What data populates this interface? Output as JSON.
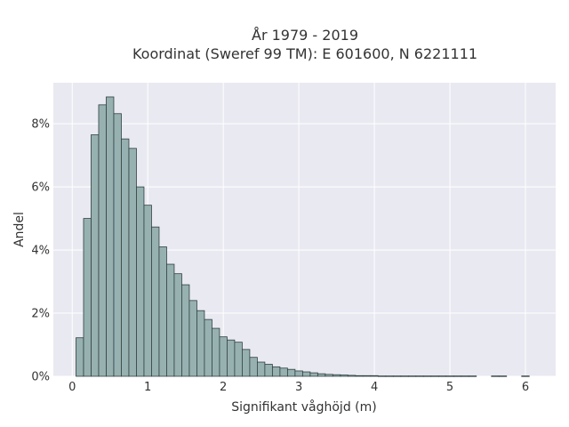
{
  "chart_data": {
    "type": "bar",
    "title_line1": "År 1979 - 2019",
    "title_line2": "Koordinat (Sweref 99 TM): E 601600, N 6221111",
    "xlabel": "Signifikant våghöjd (m)",
    "ylabel": "Andel",
    "bin_width": 0.1,
    "xlim": [
      -0.25,
      6.4
    ],
    "ylim": [
      0,
      9.3
    ],
    "x_ticks": [
      0,
      1,
      2,
      3,
      4,
      5,
      6
    ],
    "x_tick_labels": [
      "0",
      "1",
      "2",
      "3",
      "4",
      "5",
      "6"
    ],
    "y_ticks": [
      0,
      2,
      4,
      6,
      8
    ],
    "y_tick_labels": [
      "0%",
      "2%",
      "4%",
      "6%",
      "8%"
    ],
    "grid": true,
    "bin_starts": [
      0.05,
      0.15,
      0.25,
      0.35,
      0.45,
      0.55,
      0.65,
      0.75,
      0.85,
      0.95,
      1.05,
      1.15,
      1.25,
      1.35,
      1.45,
      1.55,
      1.65,
      1.75,
      1.85,
      1.95,
      2.05,
      2.15,
      2.25,
      2.35,
      2.45,
      2.55,
      2.65,
      2.75,
      2.85,
      2.95,
      3.05,
      3.15,
      3.25,
      3.35,
      3.45,
      3.55,
      3.65,
      3.75,
      3.85,
      3.95,
      4.05,
      4.15,
      4.25,
      4.35,
      4.45,
      4.55,
      4.65,
      4.75,
      4.85,
      4.95,
      5.05,
      5.15,
      5.25,
      5.55,
      5.65,
      5.95
    ],
    "values": [
      1.22,
      5.0,
      7.65,
      8.6,
      8.85,
      8.32,
      7.52,
      7.22,
      6.0,
      5.42,
      4.73,
      4.1,
      3.55,
      3.25,
      2.9,
      2.4,
      2.08,
      1.8,
      1.52,
      1.25,
      1.15,
      1.08,
      0.85,
      0.6,
      0.45,
      0.38,
      0.3,
      0.26,
      0.22,
      0.17,
      0.14,
      0.11,
      0.08,
      0.06,
      0.05,
      0.04,
      0.03,
      0.02,
      0.02,
      0.02,
      0.01,
      0.01,
      0.01,
      0.01,
      0.01,
      0.01,
      0.01,
      0.01,
      0.01,
      0.01,
      0.01,
      0.01,
      0.01,
      0.01,
      0.01,
      0.01
    ]
  }
}
